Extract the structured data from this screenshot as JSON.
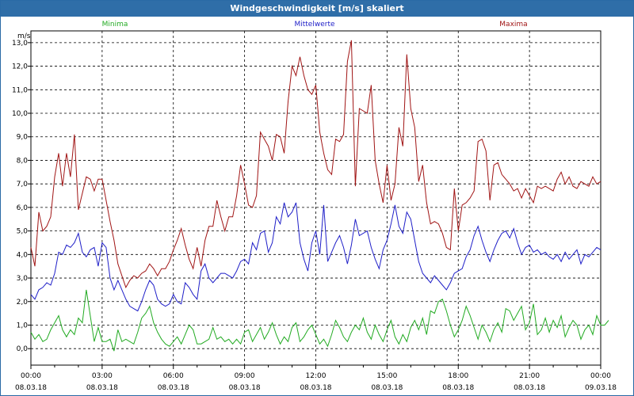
{
  "window": {
    "title": "Windgeschwindigkeit [m/s] skaliert"
  },
  "colors": {
    "min": "#22aa22",
    "mean": "#1f1fc8",
    "max": "#a01414",
    "title_bg": "#2f6ea8"
  },
  "chart_data": {
    "type": "line",
    "title": "Windgeschwindigkeit [m/s] skaliert",
    "ylabel": "m/s",
    "xlabel": "",
    "ylim": [
      -0.7,
      13.5
    ],
    "yticks": [
      "0,0",
      "1,0",
      "2,0",
      "3,0",
      "4,0",
      "5,0",
      "6,0",
      "7,0",
      "8,0",
      "9,0",
      "10,0",
      "11,0",
      "12,0",
      "13,0"
    ],
    "xticks": [
      {
        "time": "00:00",
        "date": "08.03.18"
      },
      {
        "time": "03:00",
        "date": "08.03.18"
      },
      {
        "time": "06:00",
        "date": "08.03.18"
      },
      {
        "time": "09:00",
        "date": "08.03.18"
      },
      {
        "time": "12:00",
        "date": "08.03.18"
      },
      {
        "time": "15:00",
        "date": "08.03.18"
      },
      {
        "time": "18:00",
        "date": "08.03.18"
      },
      {
        "time": "21:00",
        "date": "08.03.18"
      },
      {
        "time": "00:00",
        "date": "09.03.18"
      }
    ],
    "grid": true,
    "x_step_minutes": 10,
    "series": [
      {
        "name": "Minima",
        "values": [
          0.7,
          0.4,
          0.6,
          0.3,
          0.4,
          0.8,
          1.1,
          1.4,
          0.8,
          0.5,
          0.8,
          0.6,
          1.3,
          1.1,
          2.5,
          1.4,
          0.3,
          0.9,
          0.3,
          0.3,
          0.4,
          -0.1,
          0.8,
          0.3,
          0.4,
          0.3,
          0.2,
          0.7,
          1.3,
          1.5,
          1.8,
          1.1,
          0.7,
          0.4,
          0.2,
          0.1,
          0.3,
          0.5,
          0.2,
          0.6,
          1.0,
          0.8,
          0.2,
          0.2,
          0.3,
          0.4,
          0.9,
          0.4,
          0.5,
          0.3,
          0.4,
          0.2,
          0.4,
          0.2,
          0.7,
          0.8,
          0.3,
          0.6,
          0.9,
          0.4,
          0.7,
          1.1,
          0.6,
          0.2,
          0.5,
          0.3,
          0.9,
          1.1,
          0.3,
          0.5,
          0.8,
          1.0,
          0.6,
          0.2,
          0.4,
          0.1,
          0.6,
          1.2,
          0.9,
          0.5,
          0.3,
          0.7,
          1.0,
          0.8,
          1.3,
          0.7,
          0.4,
          1.0,
          0.6,
          0.3,
          0.8,
          1.2,
          0.5,
          0.2,
          0.6,
          0.3,
          0.9,
          1.2,
          0.8,
          1.3,
          0.6,
          1.6,
          1.5,
          2.0,
          2.1,
          1.6,
          1.0,
          0.5,
          0.8,
          1.2,
          1.8,
          1.4,
          0.9,
          0.4,
          1.0,
          0.7,
          0.3,
          0.8,
          1.1,
          0.7,
          1.7,
          1.6,
          1.2,
          1.5,
          1.8,
          0.8,
          1.1,
          1.9,
          0.6,
          0.8,
          1.3,
          0.7,
          1.2,
          0.9,
          1.4,
          0.5,
          0.9,
          1.2,
          1.0,
          0.4,
          0.8,
          1.0,
          0.6,
          1.4,
          1.0,
          1.0,
          1.2
        ]
      },
      {
        "name": "Mittelwerte",
        "values": [
          2.3,
          2.1,
          2.5,
          2.6,
          2.8,
          2.7,
          3.2,
          4.1,
          4.0,
          4.4,
          4.3,
          4.5,
          4.9,
          4.1,
          3.9,
          4.2,
          4.3,
          3.5,
          4.5,
          4.3,
          3.0,
          2.5,
          2.9,
          2.5,
          2.1,
          1.8,
          1.7,
          1.6,
          2.0,
          2.5,
          2.9,
          2.7,
          2.1,
          1.9,
          1.8,
          1.9,
          2.3,
          2.0,
          1.9,
          2.8,
          2.6,
          2.3,
          2.1,
          3.3,
          3.6,
          3.0,
          2.8,
          3.0,
          3.2,
          3.2,
          3.1,
          3.0,
          3.3,
          3.7,
          3.8,
          3.6,
          4.5,
          4.2,
          4.9,
          5.0,
          4.1,
          4.5,
          5.6,
          5.3,
          6.2,
          5.6,
          5.8,
          6.2,
          4.5,
          3.8,
          3.3,
          4.5,
          5.0,
          4.0,
          6.1,
          3.7,
          4.1,
          4.5,
          4.8,
          4.3,
          3.6,
          4.4,
          5.5,
          4.8,
          4.9,
          5.0,
          4.3,
          3.8,
          3.4,
          4.2,
          4.6,
          5.3,
          6.1,
          5.2,
          4.9,
          5.8,
          5.5,
          4.6,
          3.7,
          3.2,
          3.0,
          2.8,
          3.1,
          2.9,
          2.7,
          2.5,
          2.8,
          3.2,
          3.3,
          3.4,
          3.9,
          4.2,
          4.8,
          5.2,
          4.6,
          4.1,
          3.7,
          4.2,
          4.6,
          4.9,
          5.0,
          4.7,
          5.1,
          4.5,
          4.0,
          4.3,
          4.4,
          4.1,
          4.2,
          4.0,
          4.1,
          3.9,
          3.8,
          4.0,
          3.7,
          4.1,
          3.8,
          4.0,
          4.2,
          3.6,
          4.0,
          3.9,
          4.1,
          4.3,
          4.2
        ]
      },
      {
        "name": "Maxima",
        "values": [
          4.3,
          3.5,
          5.8,
          5.0,
          5.2,
          5.6,
          7.3,
          8.3,
          6.9,
          8.3,
          7.3,
          9.1,
          5.9,
          6.6,
          7.3,
          7.2,
          6.7,
          7.2,
          7.2,
          6.3,
          5.4,
          4.6,
          3.6,
          3.1,
          2.6,
          2.9,
          3.1,
          3.0,
          3.2,
          3.3,
          3.6,
          3.4,
          3.1,
          3.4,
          3.4,
          3.7,
          4.2,
          4.6,
          5.1,
          4.4,
          3.8,
          3.4,
          4.3,
          3.5,
          4.6,
          5.2,
          5.2,
          6.3,
          5.6,
          5.0,
          5.6,
          5.6,
          6.5,
          7.8,
          7.0,
          6.1,
          6.0,
          6.5,
          9.2,
          8.9,
          8.6,
          8.0,
          9.1,
          9.0,
          8.3,
          10.5,
          12.0,
          11.6,
          12.4,
          11.6,
          11.0,
          10.8,
          11.2,
          9.2,
          8.3,
          7.6,
          7.4,
          8.9,
          8.8,
          9.1,
          12.2,
          13.1,
          6.9,
          10.2,
          10.1,
          10.0,
          11.2,
          8.0,
          7.0,
          6.2,
          7.8,
          6.3,
          7.0,
          9.4,
          8.6,
          12.5,
          10.2,
          9.4,
          7.1,
          7.8,
          6.2,
          5.3,
          5.4,
          5.3,
          4.9,
          4.3,
          4.2,
          6.8,
          5.0,
          6.1,
          6.2,
          6.4,
          6.7,
          8.8,
          8.9,
          8.4,
          6.3,
          7.8,
          7.9,
          7.4,
          7.2,
          7.0,
          6.7,
          6.8,
          6.4,
          6.8,
          6.5,
          6.2,
          6.9,
          6.8,
          6.9,
          6.8,
          6.7,
          7.2,
          7.5,
          7.0,
          7.3,
          6.9,
          6.8,
          7.1,
          7.0,
          6.9,
          7.3,
          7.0,
          7.1
        ]
      }
    ]
  }
}
